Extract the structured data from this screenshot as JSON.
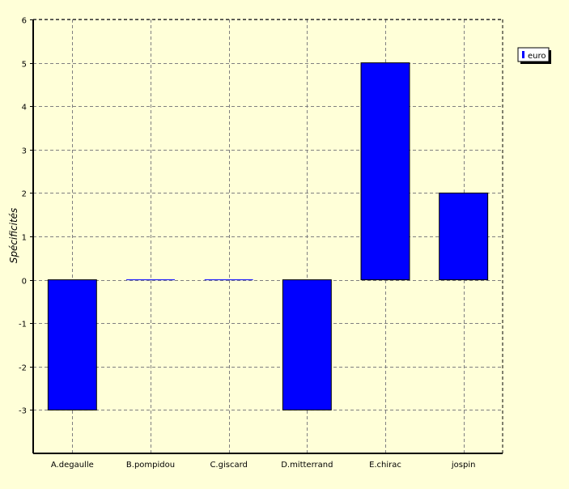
{
  "chart_data": {
    "type": "bar",
    "title": "",
    "xlabel": "",
    "ylabel": "Spécificités",
    "categories": [
      "A.degaulle",
      "B.pompidou",
      "C.giscard",
      "D.mitterrand",
      "E.chirac",
      "jospin"
    ],
    "series": [
      {
        "name": "euro",
        "values": [
          -3,
          0,
          0,
          -3,
          5,
          2
        ]
      }
    ],
    "ylim": [
      -4,
      6
    ],
    "yticks": [
      6,
      5,
      4,
      3,
      2,
      1,
      0,
      -1,
      -2,
      -3
    ],
    "grid": true,
    "legend_position": "top-right",
    "colors": {
      "bar": "#0000FF",
      "background": "#FFFFD8",
      "grid": "#808080"
    }
  }
}
